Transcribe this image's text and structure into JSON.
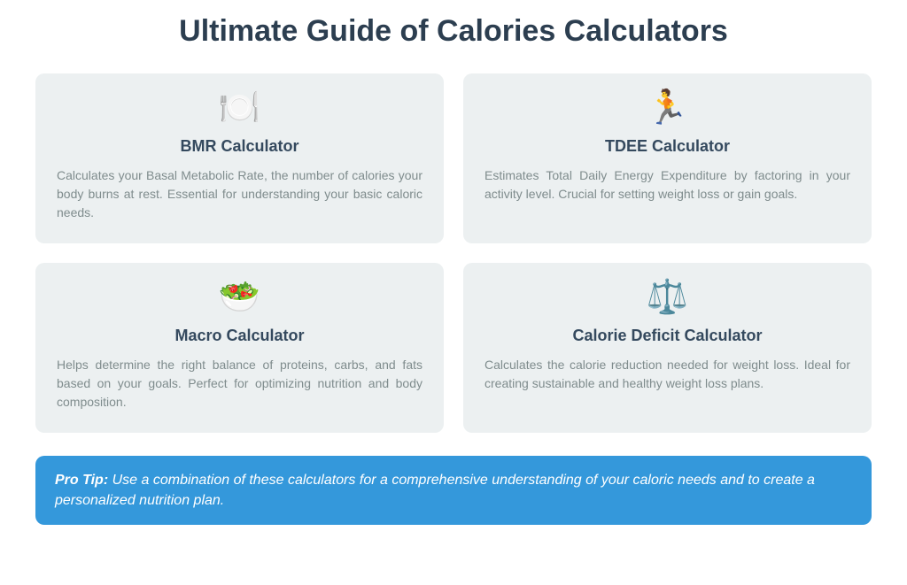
{
  "title": "Ultimate Guide of Calories Calculators",
  "colors": {
    "page_bg": "#ffffff",
    "card_bg": "#ecf0f1",
    "title_color": "#2c3e50",
    "card_title_color": "#34495e",
    "card_desc_color": "#7f8c8d",
    "tip_bg": "#3498db",
    "tip_text": "#ffffff"
  },
  "cards": [
    {
      "icon": "🍽️",
      "icon_name": "plate-icon",
      "title": "BMR Calculator",
      "desc": "Calculates your Basal Metabolic Rate, the number of calories your body burns at rest. Essential for understanding your basic caloric needs."
    },
    {
      "icon": "🏃",
      "icon_name": "runner-icon",
      "title": "TDEE Calculator",
      "desc": "Estimates Total Daily Energy Expenditure by factoring in your activity level. Crucial for setting weight loss or gain goals."
    },
    {
      "icon": "🥗",
      "icon_name": "salad-icon",
      "title": "Macro Calculator",
      "desc": "Helps determine the right balance of proteins, carbs, and fats based on your goals. Perfect for optimizing nutrition and body composition."
    },
    {
      "icon": "⚖️",
      "icon_name": "scale-icon",
      "title": "Calorie Deficit Calculator",
      "desc": "Calculates the calorie reduction needed for weight loss. Ideal for creating sustainable and healthy weight loss plans."
    }
  ],
  "tip": {
    "label": "Pro Tip:",
    "text": "Use a combination of these calculators for a comprehensive understanding of your caloric needs and to create a personalized nutrition plan."
  }
}
